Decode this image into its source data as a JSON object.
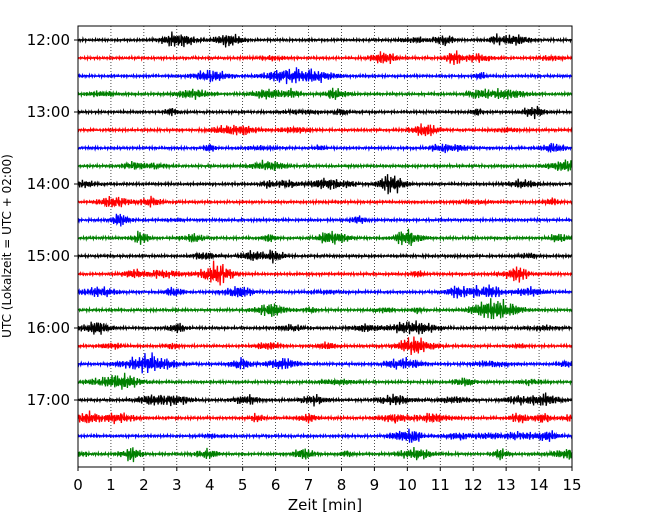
{
  "chart_data": {
    "type": "line",
    "title": "",
    "xlabel": "Zeit  [min]",
    "ylabel": "UTC (Lokalzeit = UTC + 02:00)",
    "xlim": [
      0,
      15
    ],
    "x_ticks": [
      "0",
      "1",
      "2",
      "3",
      "4",
      "5",
      "6",
      "7",
      "8",
      "9",
      "10",
      "11",
      "12",
      "13",
      "14",
      "15"
    ],
    "y_ticks": [
      "12:00",
      "13:00",
      "14:00",
      "15:00",
      "16:00",
      "17:00"
    ],
    "vertical_grid": true,
    "grid_style": "dotted",
    "trace_interval_min": 15,
    "colors": [
      "#000000",
      "#ff0000",
      "#0000ff",
      "#008000"
    ],
    "series": [
      {
        "start": "12:00",
        "color": "#000000"
      },
      {
        "start": "12:15",
        "color": "#ff0000"
      },
      {
        "start": "12:30",
        "color": "#0000ff"
      },
      {
        "start": "12:45",
        "color": "#008000"
      },
      {
        "start": "13:00",
        "color": "#000000"
      },
      {
        "start": "13:15",
        "color": "#ff0000"
      },
      {
        "start": "13:30",
        "color": "#0000ff"
      },
      {
        "start": "13:45",
        "color": "#008000"
      },
      {
        "start": "14:00",
        "color": "#000000"
      },
      {
        "start": "14:15",
        "color": "#ff0000"
      },
      {
        "start": "14:30",
        "color": "#0000ff"
      },
      {
        "start": "14:45",
        "color": "#008000"
      },
      {
        "start": "15:00",
        "color": "#000000"
      },
      {
        "start": "15:15",
        "color": "#ff0000"
      },
      {
        "start": "15:30",
        "color": "#0000ff"
      },
      {
        "start": "15:45",
        "color": "#008000"
      },
      {
        "start": "16:00",
        "color": "#000000"
      },
      {
        "start": "16:15",
        "color": "#ff0000"
      },
      {
        "start": "16:30",
        "color": "#0000ff"
      },
      {
        "start": "16:45",
        "color": "#008000"
      },
      {
        "start": "17:00",
        "color": "#000000"
      },
      {
        "start": "17:15",
        "color": "#ff0000"
      },
      {
        "start": "17:30",
        "color": "#0000ff"
      },
      {
        "start": "17:45",
        "color": "#008000"
      }
    ]
  }
}
